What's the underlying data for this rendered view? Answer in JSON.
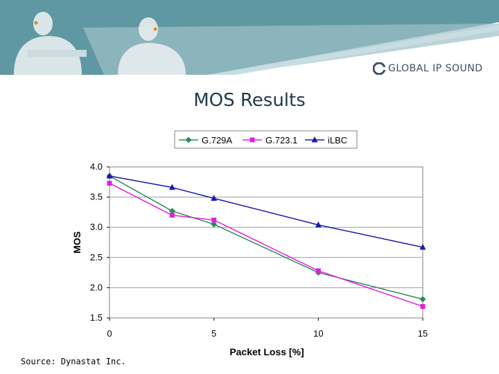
{
  "header": {
    "logo_text": "GLOBAL IP SOUND",
    "colors": {
      "banner": "#5f98a2",
      "banner_light": "#a9c5cc"
    }
  },
  "slide": {
    "title": "MOS Results",
    "source": "Source: Dynastat Inc."
  },
  "chart_data": {
    "type": "line",
    "title": "",
    "xlabel": "Packet Loss [%]",
    "ylabel": "MOS",
    "x": [
      0,
      3,
      5,
      10,
      15
    ],
    "x_ticks": [
      "0",
      "5",
      "10",
      "15"
    ],
    "y_ticks": [
      "1.5",
      "2.0",
      "2.5",
      "3.0",
      "3.5",
      "4.0"
    ],
    "xlim": [
      0,
      15
    ],
    "ylim": [
      1.5,
      4.0
    ],
    "grid": "horizontal",
    "legend_position": "top",
    "series": [
      {
        "name": "G.729A",
        "values": [
          3.85,
          3.27,
          3.05,
          2.25,
          1.81
        ],
        "color": "#2e8b57",
        "marker": "diamond"
      },
      {
        "name": "G.723.1",
        "values": [
          3.73,
          3.2,
          3.12,
          2.28,
          1.69
        ],
        "color": "#e020e0",
        "marker": "square"
      },
      {
        "name": "iLBC",
        "values": [
          3.85,
          3.66,
          3.48,
          3.04,
          2.67
        ],
        "color": "#1a1aa8",
        "marker": "triangle"
      }
    ]
  }
}
